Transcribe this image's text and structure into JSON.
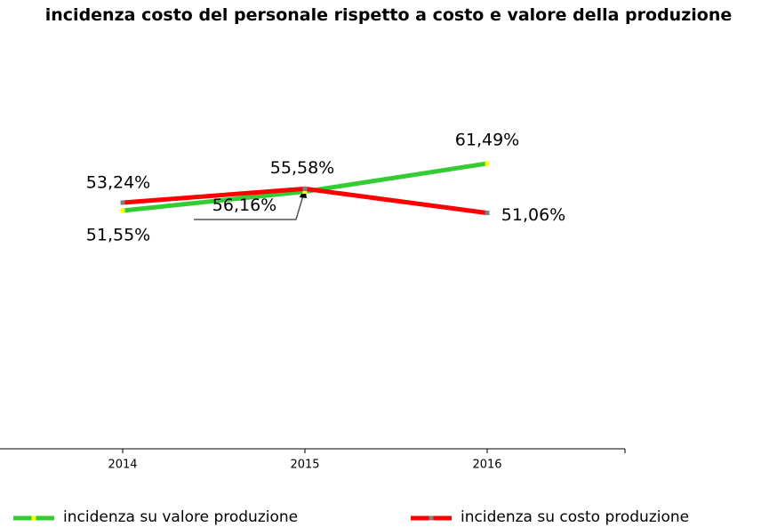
{
  "chart_data": {
    "type": "line",
    "title": "incidenza costo del personale rispetto a costo e valore della produzione",
    "categories": [
      "2014",
      "2015",
      "2016"
    ],
    "series": [
      {
        "name": "incidenza su valore produzione",
        "color": "#33cc33",
        "marker_color": "#ffff00",
        "values": [
          51.55,
          55.58,
          61.49
        ],
        "value_labels": [
          "51,55%",
          "55,58%",
          "61,49%"
        ]
      },
      {
        "name": "incidenza su costo produzione",
        "color": "#ff0000",
        "marker_color": "#808080",
        "values": [
          53.24,
          56.16,
          51.06
        ],
        "value_labels": [
          "53,24%",
          "56,16%",
          "51,06%"
        ]
      }
    ],
    "legend": "bottom"
  }
}
